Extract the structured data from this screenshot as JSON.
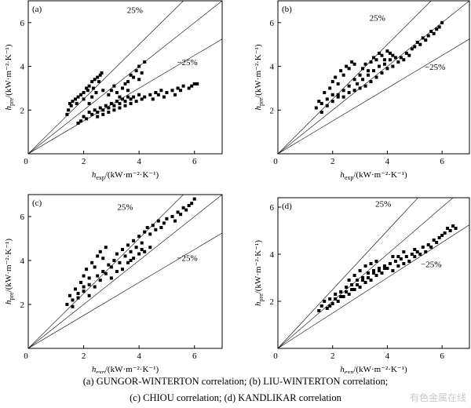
{
  "chart_data": [
    {
      "type": "scatter",
      "panel_label": "(a)",
      "xlabel": "h_exp/(kW·m⁻²·K⁻¹)",
      "ylabel": "h_pre/(kW·m⁻²·K⁻¹)",
      "xlim": [
        0,
        7
      ],
      "ylim": [
        0,
        7
      ],
      "xticks": [
        0,
        2,
        4,
        6
      ],
      "yticks": [
        2,
        4,
        6
      ],
      "reference_lines": [
        {
          "label": "25%",
          "slope": 1.25
        },
        {
          "label": "−25%",
          "slope": 0.75
        },
        {
          "label": "",
          "slope": 1.0
        }
      ],
      "points": [
        [
          1.4,
          1.8
        ],
        [
          1.45,
          2.0
        ],
        [
          1.5,
          2.3
        ],
        [
          1.55,
          2.2
        ],
        [
          1.6,
          2.4
        ],
        [
          1.7,
          2.5
        ],
        [
          1.75,
          2.3
        ],
        [
          1.8,
          2.6
        ],
        [
          1.9,
          2.7
        ],
        [
          2.0,
          2.5
        ],
        [
          2.0,
          2.8
        ],
        [
          2.1,
          3.0
        ],
        [
          2.15,
          2.9
        ],
        [
          2.2,
          3.1
        ],
        [
          2.3,
          3.3
        ],
        [
          2.35,
          3.0
        ],
        [
          2.4,
          3.4
        ],
        [
          2.5,
          3.5
        ],
        [
          2.55,
          3.3
        ],
        [
          2.6,
          3.6
        ],
        [
          2.65,
          3.7
        ],
        [
          2.2,
          2.3
        ],
        [
          2.3,
          2.6
        ],
        [
          2.45,
          2.8
        ],
        [
          2.7,
          2.9
        ],
        [
          2.9,
          2.7
        ],
        [
          3.0,
          2.9
        ],
        [
          3.1,
          3.1
        ],
        [
          3.2,
          2.8
        ],
        [
          3.4,
          3.0
        ],
        [
          3.5,
          3.2
        ],
        [
          3.6,
          3.3
        ],
        [
          3.7,
          3.6
        ],
        [
          3.8,
          3.5
        ],
        [
          3.9,
          3.8
        ],
        [
          4.0,
          4.0
        ],
        [
          4.1,
          3.7
        ],
        [
          4.2,
          4.2
        ],
        [
          4.0,
          3.4
        ],
        [
          3.6,
          2.9
        ],
        [
          3.3,
          2.6
        ],
        [
          1.8,
          1.4
        ],
        [
          1.9,
          1.5
        ],
        [
          2.0,
          1.7
        ],
        [
          2.1,
          1.6
        ],
        [
          2.2,
          1.9
        ],
        [
          2.3,
          1.8
        ],
        [
          2.4,
          2.0
        ],
        [
          2.5,
          1.9
        ],
        [
          2.6,
          2.1
        ],
        [
          2.7,
          2.0
        ],
        [
          2.8,
          2.2
        ],
        [
          2.9,
          2.1
        ],
        [
          3.0,
          2.3
        ],
        [
          3.1,
          2.2
        ],
        [
          3.2,
          2.4
        ],
        [
          3.3,
          2.3
        ],
        [
          3.4,
          2.5
        ],
        [
          3.5,
          2.4
        ],
        [
          3.6,
          2.6
        ],
        [
          3.7,
          2.5
        ],
        [
          3.8,
          2.6
        ],
        [
          3.9,
          2.4
        ],
        [
          4.0,
          2.7
        ],
        [
          4.1,
          2.5
        ],
        [
          4.2,
          2.6
        ],
        [
          4.4,
          2.7
        ],
        [
          4.5,
          2.5
        ],
        [
          4.6,
          2.8
        ],
        [
          4.7,
          2.7
        ],
        [
          4.8,
          2.9
        ],
        [
          4.9,
          2.6
        ],
        [
          5.0,
          2.8
        ],
        [
          5.2,
          2.9
        ],
        [
          5.3,
          2.7
        ],
        [
          5.4,
          3.0
        ],
        [
          5.5,
          2.9
        ],
        [
          5.6,
          3.1
        ],
        [
          5.8,
          3.0
        ],
        [
          5.9,
          3.1
        ],
        [
          6.0,
          3.2
        ],
        [
          6.1,
          3.2
        ],
        [
          2.5,
          1.7
        ],
        [
          2.7,
          1.8
        ],
        [
          2.9,
          1.9
        ],
        [
          3.1,
          2.0
        ],
        [
          3.3,
          2.1
        ],
        [
          3.5,
          2.2
        ],
        [
          3.7,
          2.3
        ]
      ]
    },
    {
      "type": "scatter",
      "panel_label": "(b)",
      "xlabel": "h_exp/(kW·m⁻²·K⁻¹)",
      "ylabel": "h_pre/(kW·m⁻²·K⁻¹)",
      "xlim": [
        0,
        7
      ],
      "ylim": [
        0,
        7
      ],
      "xticks": [
        0,
        2,
        4,
        6
      ],
      "yticks": [
        2,
        4,
        6
      ],
      "reference_lines": [
        {
          "label": "25%",
          "slope": 1.25
        },
        {
          "label": "−25%",
          "slope": 0.75
        },
        {
          "label": "",
          "slope": 1.0
        }
      ],
      "points": [
        [
          1.4,
          2.1
        ],
        [
          1.5,
          2.4
        ],
        [
          1.6,
          2.3
        ],
        [
          1.7,
          2.8
        ],
        [
          1.8,
          2.5
        ],
        [
          1.9,
          3.0
        ],
        [
          2.0,
          2.7
        ],
        [
          2.0,
          3.3
        ],
        [
          2.1,
          3.5
        ],
        [
          2.2,
          3.2
        ],
        [
          2.3,
          3.8
        ],
        [
          2.4,
          3.6
        ],
        [
          2.5,
          4.0
        ],
        [
          2.6,
          3.9
        ],
        [
          2.7,
          4.2
        ],
        [
          2.8,
          4.1
        ],
        [
          2.2,
          2.6
        ],
        [
          2.4,
          2.9
        ],
        [
          2.6,
          3.1
        ],
        [
          2.8,
          3.4
        ],
        [
          3.0,
          3.6
        ],
        [
          3.1,
          3.9
        ],
        [
          3.2,
          4.1
        ],
        [
          3.3,
          3.8
        ],
        [
          3.4,
          4.2
        ],
        [
          3.5,
          4.4
        ],
        [
          3.6,
          4.3
        ],
        [
          3.7,
          4.6
        ],
        [
          3.8,
          4.5
        ],
        [
          3.9,
          4.3
        ],
        [
          4.0,
          4.7
        ],
        [
          4.1,
          4.6
        ],
        [
          4.2,
          4.5
        ],
        [
          2.0,
          2.4
        ],
        [
          2.2,
          2.7
        ],
        [
          2.4,
          2.6
        ],
        [
          2.6,
          2.8
        ],
        [
          2.8,
          2.9
        ],
        [
          3.0,
          3.0
        ],
        [
          3.2,
          3.1
        ],
        [
          3.4,
          3.3
        ],
        [
          3.6,
          3.5
        ],
        [
          3.8,
          3.7
        ],
        [
          4.0,
          3.9
        ],
        [
          4.2,
          4.0
        ],
        [
          4.4,
          4.2
        ],
        [
          4.5,
          4.4
        ],
        [
          4.6,
          4.3
        ],
        [
          4.7,
          4.6
        ],
        [
          4.8,
          4.5
        ],
        [
          4.9,
          4.8
        ],
        [
          5.0,
          4.9
        ],
        [
          5.1,
          5.1
        ],
        [
          5.2,
          5.0
        ],
        [
          5.3,
          5.3
        ],
        [
          5.4,
          5.2
        ],
        [
          5.5,
          5.4
        ],
        [
          5.6,
          5.6
        ],
        [
          5.7,
          5.5
        ],
        [
          5.8,
          5.7
        ],
        [
          5.9,
          5.8
        ],
        [
          6.0,
          6.0
        ],
        [
          1.6,
          1.9
        ],
        [
          1.8,
          2.2
        ],
        [
          2.9,
          3.2
        ],
        [
          3.1,
          3.4
        ],
        [
          3.3,
          3.6
        ],
        [
          3.5,
          3.8
        ],
        [
          3.7,
          4.0
        ],
        [
          3.9,
          4.1
        ],
        [
          4.1,
          4.3
        ],
        [
          4.3,
          4.4
        ]
      ]
    },
    {
      "type": "scatter",
      "panel_label": "(c)",
      "xlabel": "h_exp/(kW·m⁻²·K⁻¹)",
      "ylabel": "h_pre/(kW·m⁻²·K⁻¹)",
      "xlim": [
        0,
        7
      ],
      "ylim": [
        0,
        7
      ],
      "xticks": [
        0,
        2,
        4,
        6
      ],
      "yticks": [
        2,
        4,
        6
      ],
      "reference_lines": [
        {
          "label": "25%",
          "slope": 1.25
        },
        {
          "label": "−25%",
          "slope": 0.75
        },
        {
          "label": "",
          "slope": 1.0
        }
      ],
      "points": [
        [
          1.4,
          2.0
        ],
        [
          1.5,
          2.4
        ],
        [
          1.6,
          2.2
        ],
        [
          1.7,
          2.7
        ],
        [
          1.8,
          2.5
        ],
        [
          1.9,
          3.0
        ],
        [
          2.0,
          2.8
        ],
        [
          2.0,
          3.3
        ],
        [
          2.1,
          3.6
        ],
        [
          2.2,
          3.2
        ],
        [
          2.3,
          3.9
        ],
        [
          2.4,
          3.7
        ],
        [
          2.5,
          4.2
        ],
        [
          2.6,
          4.4
        ],
        [
          2.7,
          4.1
        ],
        [
          2.8,
          4.6
        ],
        [
          2.2,
          2.4
        ],
        [
          2.4,
          2.8
        ],
        [
          2.6,
          3.1
        ],
        [
          2.8,
          3.4
        ],
        [
          3.0,
          3.7
        ],
        [
          3.1,
          4.0
        ],
        [
          3.2,
          4.3
        ],
        [
          3.3,
          3.9
        ],
        [
          3.4,
          4.5
        ],
        [
          3.5,
          4.2
        ],
        [
          3.6,
          4.7
        ],
        [
          3.7,
          4.4
        ],
        [
          3.8,
          4.9
        ],
        [
          3.9,
          4.6
        ],
        [
          4.0,
          5.1
        ],
        [
          4.1,
          4.8
        ],
        [
          4.2,
          5.3
        ],
        [
          4.3,
          5.5
        ],
        [
          4.4,
          5.2
        ],
        [
          4.5,
          5.6
        ],
        [
          4.6,
          5.4
        ],
        [
          4.7,
          5.8
        ],
        [
          4.8,
          5.5
        ],
        [
          4.9,
          5.7
        ],
        [
          5.0,
          5.9
        ],
        [
          5.2,
          6.0
        ],
        [
          5.3,
          5.8
        ],
        [
          5.4,
          6.2
        ],
        [
          5.5,
          6.1
        ],
        [
          5.6,
          6.4
        ],
        [
          5.7,
          6.3
        ],
        [
          5.8,
          6.5
        ],
        [
          5.9,
          6.6
        ],
        [
          6.0,
          6.8
        ],
        [
          3.0,
          3.2
        ],
        [
          3.2,
          3.5
        ],
        [
          3.4,
          3.6
        ],
        [
          3.6,
          3.9
        ],
        [
          3.8,
          4.1
        ],
        [
          4.0,
          4.3
        ],
        [
          4.2,
          4.4
        ],
        [
          4.4,
          4.6
        ],
        [
          2.0,
          2.6
        ],
        [
          2.2,
          2.9
        ],
        [
          2.5,
          3.3
        ],
        [
          2.7,
          3.5
        ],
        [
          2.9,
          3.8
        ],
        [
          1.6,
          1.9
        ],
        [
          1.8,
          2.3
        ],
        [
          4.1,
          4.5
        ],
        [
          3.7,
          4.0
        ]
      ]
    },
    {
      "type": "scatter",
      "panel_label": "(d)",
      "xlabel": "h_exp/(kW·m⁻²·K⁻¹)",
      "ylabel": "h_pre/(kW·m⁻²·K⁻¹)",
      "xlim": [
        0,
        7
      ],
      "ylim": [
        0,
        6.4
      ],
      "xticks": [
        0,
        2,
        4,
        6
      ],
      "yticks": [
        2,
        4,
        6
      ],
      "reference_lines": [
        {
          "label": "25%",
          "slope": 1.25
        },
        {
          "label": "−25%",
          "slope": 0.75
        },
        {
          "label": "",
          "slope": 1.0
        }
      ],
      "points": [
        [
          1.5,
          1.6
        ],
        [
          1.6,
          1.8
        ],
        [
          1.7,
          2.0
        ],
        [
          1.8,
          1.7
        ],
        [
          1.9,
          2.1
        ],
        [
          2.0,
          1.9
        ],
        [
          2.1,
          2.3
        ],
        [
          2.2,
          2.0
        ],
        [
          2.3,
          2.4
        ],
        [
          2.4,
          2.2
        ],
        [
          2.5,
          2.6
        ],
        [
          2.6,
          2.3
        ],
        [
          2.7,
          2.7
        ],
        [
          2.8,
          2.5
        ],
        [
          2.9,
          2.9
        ],
        [
          3.0,
          2.6
        ],
        [
          3.1,
          3.0
        ],
        [
          3.2,
          2.8
        ],
        [
          3.3,
          3.2
        ],
        [
          3.4,
          2.9
        ],
        [
          3.5,
          3.3
        ],
        [
          3.6,
          3.1
        ],
        [
          3.7,
          3.4
        ],
        [
          3.8,
          3.2
        ],
        [
          3.9,
          3.5
        ],
        [
          4.0,
          3.4
        ],
        [
          4.1,
          3.6
        ],
        [
          4.2,
          3.3
        ],
        [
          4.3,
          3.7
        ],
        [
          4.4,
          3.5
        ],
        [
          4.5,
          3.8
        ],
        [
          4.6,
          3.6
        ],
        [
          4.7,
          3.9
        ],
        [
          4.8,
          3.7
        ],
        [
          4.9,
          4.0
        ],
        [
          5.0,
          3.9
        ],
        [
          5.1,
          4.1
        ],
        [
          5.2,
          4.0
        ],
        [
          5.3,
          4.3
        ],
        [
          5.4,
          4.1
        ],
        [
          5.5,
          4.4
        ],
        [
          5.6,
          4.3
        ],
        [
          5.7,
          4.6
        ],
        [
          5.8,
          4.5
        ],
        [
          5.9,
          4.7
        ],
        [
          6.0,
          4.8
        ],
        [
          6.1,
          4.9
        ],
        [
          6.2,
          5.1
        ],
        [
          6.3,
          5.0
        ],
        [
          6.4,
          5.2
        ],
        [
          6.5,
          5.1
        ],
        [
          1.9,
          1.8
        ],
        [
          2.1,
          2.1
        ],
        [
          2.3,
          2.2
        ],
        [
          2.5,
          2.4
        ],
        [
          2.7,
          2.5
        ],
        [
          2.9,
          2.7
        ],
        [
          3.1,
          2.9
        ],
        [
          3.3,
          3.0
        ],
        [
          3.5,
          3.2
        ],
        [
          3.7,
          3.3
        ],
        [
          3.9,
          3.4
        ],
        [
          2.6,
          2.9
        ],
        [
          2.8,
          3.1
        ],
        [
          3.0,
          3.3
        ],
        [
          3.2,
          3.5
        ],
        [
          3.4,
          3.6
        ],
        [
          3.6,
          3.7
        ],
        [
          4.2,
          3.9
        ],
        [
          4.6,
          4.1
        ],
        [
          5.0,
          4.2
        ],
        [
          4.4,
          3.9
        ]
      ]
    }
  ],
  "caption": {
    "line1": "(a)  GUNGOR-WINTERTON correlation; (b) LIU-WINTERTON correlation;",
    "line2": "(c) CHIOU correlation; (d) KANDLIKAR correlation"
  },
  "watermark": "有色金属在线"
}
